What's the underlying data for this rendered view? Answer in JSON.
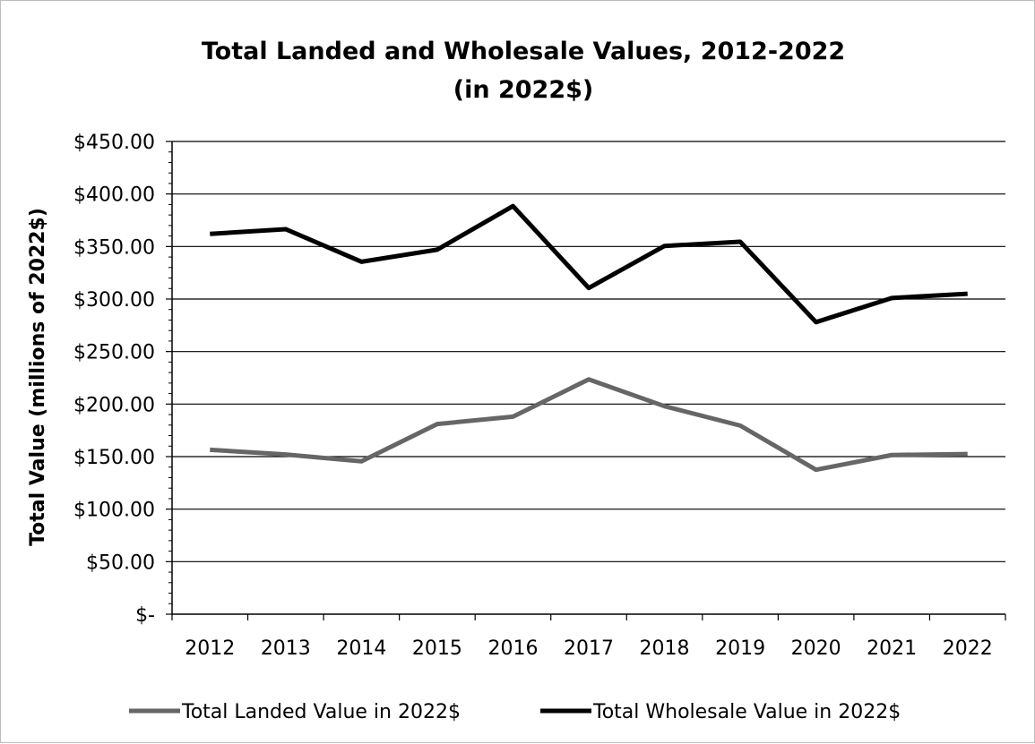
{
  "chart_data": {
    "type": "line",
    "title_lines": [
      "Total Landed and Wholesale Values, 2012-2022",
      "(in 2022$)"
    ],
    "ylabel": "Total Value (millions of 2022$)",
    "xlabel": "",
    "categories": [
      "2012",
      "2013",
      "2014",
      "2015",
      "2016",
      "2017",
      "2018",
      "2019",
      "2020",
      "2021",
      "2022"
    ],
    "ylim": [
      0,
      450
    ],
    "yticks": [
      0,
      50,
      100,
      150,
      200,
      250,
      300,
      350,
      400,
      450
    ],
    "ytick_labels": [
      "$-",
      "$50.00",
      "$100.00",
      "$150.00",
      "$200.00",
      "$250.00",
      "$300.00",
      "$350.00",
      "$400.00",
      "$450.00"
    ],
    "grid": "horizontal major gridlines",
    "legend_position": "bottom",
    "series": [
      {
        "name": "Total Landed Value in 2022$",
        "color": "#666666",
        "values": [
          156.5,
          152.0,
          145.5,
          181.0,
          188.0,
          223.5,
          198.0,
          179.5,
          137.5,
          151.5,
          152.5
        ]
      },
      {
        "name": "Total Wholesale Value in 2022$",
        "color": "#000000",
        "values": [
          362.0,
          366.5,
          335.5,
          347.0,
          388.5,
          310.5,
          350.5,
          354.5,
          278.0,
          301.0,
          305.0
        ]
      }
    ]
  }
}
